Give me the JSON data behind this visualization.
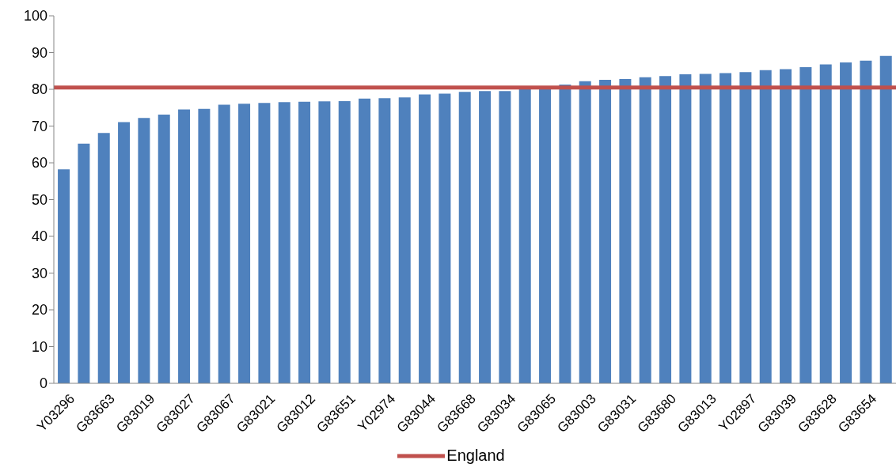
{
  "chart_data": {
    "type": "bar",
    "categories": [
      "Y03296",
      null,
      "G83663",
      null,
      "G83019",
      null,
      "G83027",
      null,
      "G83067",
      null,
      "G83021",
      null,
      "G83012",
      null,
      "G83651",
      null,
      "Y02974",
      null,
      "G83044",
      null,
      "G83668",
      null,
      "G83034",
      null,
      "G83065",
      null,
      "G83003",
      null,
      "G83031",
      null,
      "G83680",
      null,
      "G83013",
      null,
      "Y02897",
      null,
      "G83039",
      null,
      "G83628",
      null,
      "G83654",
      null
    ],
    "series": [
      {
        "color": "#4f81bd",
        "values": [
          58.2,
          65.2,
          68.1,
          71.1,
          72.2,
          73.1,
          74.5,
          74.7,
          75.8,
          76.1,
          76.3,
          76.5,
          76.6,
          76.7,
          76.8,
          77.5,
          77.6,
          77.8,
          78.6,
          78.8,
          79.3,
          79.5,
          79.5,
          80.0,
          80.3,
          81.3,
          82.2,
          82.6,
          82.8,
          83.3,
          83.6,
          84.1,
          84.2,
          84.4,
          84.7,
          85.2,
          85.5,
          86.0,
          86.8,
          87.3,
          87.8,
          89.1
        ]
      }
    ],
    "ref_lines": [
      {
        "axis": "y",
        "value": 80.5,
        "label": "England",
        "color": "#c0504d"
      }
    ],
    "ylim": [
      0,
      100
    ],
    "yticks": [
      0,
      10,
      20,
      30,
      40,
      50,
      60,
      70,
      80,
      90,
      100
    ],
    "legend": "bottom"
  }
}
